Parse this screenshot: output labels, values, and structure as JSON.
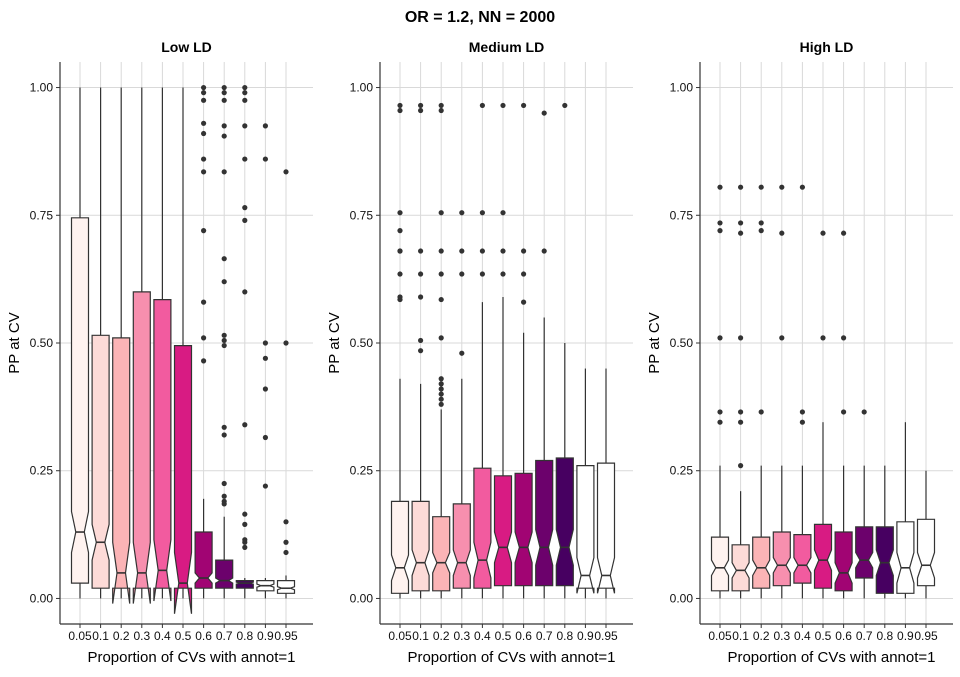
{
  "chart_data": {
    "type": "box",
    "title": "OR = 1.2, NN = 2000",
    "xlabel": "Proportion of CVs with annot=1",
    "ylabel": "PP at CV",
    "ylim": [
      -0.05,
      1.05
    ],
    "yticks": [
      "0.00",
      "0.25",
      "0.50",
      "0.75",
      "1.00"
    ],
    "categories": [
      "0.05",
      "0.1",
      "0.2",
      "0.3",
      "0.4",
      "0.5",
      "0.6",
      "0.7",
      "0.8",
      "0.9",
      "0.95"
    ],
    "fill_colors": [
      "#fff3f0",
      "#fddbd8",
      "#fbb4b6",
      "#f78fae",
      "#f25b9f",
      "#d81b83",
      "#a10473",
      "#6c016c",
      "#470061",
      "#ffffff",
      "#ffffff"
    ],
    "grid": true,
    "notched": true,
    "panels": [
      {
        "title": "Low LD",
        "boxes": [
          {
            "whislo": 0.0,
            "q1": 0.03,
            "med": 0.13,
            "q3": 0.745,
            "whishi": 1.0,
            "notch": [
              0.09,
              0.17
            ],
            "outliers": []
          },
          {
            "whislo": 0.0,
            "q1": 0.02,
            "med": 0.11,
            "q3": 0.515,
            "whishi": 1.0,
            "notch": [
              0.075,
              0.145
            ],
            "outliers": []
          },
          {
            "whislo": 0.0,
            "q1": 0.02,
            "med": 0.05,
            "q3": 0.51,
            "whishi": 1.0,
            "notch": [
              -0.01,
              0.11
            ],
            "outliers": []
          },
          {
            "whislo": 0.0,
            "q1": 0.02,
            "med": 0.05,
            "q3": 0.6,
            "whishi": 1.0,
            "notch": [
              -0.01,
              0.11
            ],
            "outliers": []
          },
          {
            "whislo": 0.0,
            "q1": 0.02,
            "med": 0.055,
            "q3": 0.585,
            "whishi": 1.0,
            "notch": [
              -0.005,
              0.115
            ],
            "outliers": []
          },
          {
            "whislo": 0.0,
            "q1": 0.02,
            "med": 0.03,
            "q3": 0.495,
            "whishi": 1.0,
            "notch": [
              -0.03,
              0.09
            ],
            "outliers": []
          },
          {
            "whislo": 0.0,
            "q1": 0.02,
            "med": 0.04,
            "q3": 0.13,
            "whishi": 0.195,
            "notch": [
              0.03,
              0.05
            ],
            "outliers": [
              1.0,
              0.99,
              0.975,
              0.93,
              0.91,
              0.86,
              0.835,
              0.72,
              0.58,
              0.51,
              0.465
            ]
          },
          {
            "whislo": 0.0,
            "q1": 0.02,
            "med": 0.035,
            "q3": 0.075,
            "whishi": 0.16,
            "notch": [
              0.03,
              0.04
            ],
            "outliers": [
              1.0,
              0.99,
              0.975,
              0.925,
              0.905,
              0.835,
              0.665,
              0.62,
              0.515,
              0.505,
              0.495,
              0.335,
              0.32,
              0.225,
              0.2,
              0.19,
              0.185
            ]
          },
          {
            "whislo": 0.0,
            "q1": 0.02,
            "med": 0.03,
            "q3": 0.035,
            "whishi": 0.04,
            "notch": [
              0.028,
              0.032
            ],
            "outliers": [
              1.0,
              0.99,
              0.975,
              0.925,
              0.86,
              0.765,
              0.74,
              0.6,
              0.34,
              0.165,
              0.145,
              0.115,
              0.11,
              0.1
            ]
          },
          {
            "whislo": 0.0,
            "q1": 0.015,
            "med": 0.025,
            "q3": 0.035,
            "whishi": 0.04,
            "notch": [
              0.022,
              0.028
            ],
            "outliers": [
              0.925,
              0.86,
              0.5,
              0.47,
              0.41,
              0.315,
              0.22
            ]
          },
          {
            "whislo": 0.0,
            "q1": 0.01,
            "med": 0.02,
            "q3": 0.035,
            "whishi": 0.045,
            "notch": [
              0.017,
              0.023
            ],
            "outliers": [
              0.835,
              0.5,
              0.15,
              0.11,
              0.09
            ]
          }
        ]
      },
      {
        "title": "Medium LD",
        "boxes": [
          {
            "whislo": 0.0,
            "q1": 0.01,
            "med": 0.06,
            "q3": 0.19,
            "whishi": 0.43,
            "notch": [
              0.035,
              0.085
            ],
            "outliers": [
              0.965,
              0.955,
              0.755,
              0.72,
              0.68,
              0.68,
              0.635,
              0.59,
              0.585
            ]
          },
          {
            "whislo": 0.0,
            "q1": 0.015,
            "med": 0.07,
            "q3": 0.19,
            "whishi": 0.42,
            "notch": [
              0.045,
              0.095
            ],
            "outliers": [
              0.965,
              0.955,
              0.68,
              0.635,
              0.59,
              0.505,
              0.485
            ]
          },
          {
            "whislo": 0.0,
            "q1": 0.015,
            "med": 0.07,
            "q3": 0.16,
            "whishi": 0.37,
            "notch": [
              0.05,
              0.09
            ],
            "outliers": [
              0.965,
              0.955,
              0.755,
              0.68,
              0.635,
              0.585,
              0.51,
              0.43,
              0.42,
              0.41,
              0.4,
              0.39,
              0.38
            ]
          },
          {
            "whislo": 0.0,
            "q1": 0.02,
            "med": 0.07,
            "q3": 0.185,
            "whishi": 0.43,
            "notch": [
              0.045,
              0.095
            ],
            "outliers": [
              0.755,
              0.68,
              0.635,
              0.48
            ]
          },
          {
            "whislo": 0.0,
            "q1": 0.02,
            "med": 0.075,
            "q3": 0.255,
            "whishi": 0.58,
            "notch": [
              0.04,
              0.11
            ],
            "outliers": [
              0.965,
              0.755,
              0.68,
              0.635
            ]
          },
          {
            "whislo": 0.0,
            "q1": 0.025,
            "med": 0.1,
            "q3": 0.24,
            "whishi": 0.59,
            "notch": [
              0.07,
              0.13
            ],
            "outliers": [
              0.965,
              0.755,
              0.68,
              0.635
            ]
          },
          {
            "whislo": 0.0,
            "q1": 0.025,
            "med": 0.1,
            "q3": 0.245,
            "whishi": 0.52,
            "notch": [
              0.07,
              0.13
            ],
            "outliers": [
              0.965,
              0.68,
              0.635,
              0.58
            ]
          },
          {
            "whislo": 0.0,
            "q1": 0.025,
            "med": 0.1,
            "q3": 0.27,
            "whishi": 0.55,
            "notch": [
              0.065,
              0.135
            ],
            "outliers": [
              0.95,
              0.68
            ]
          },
          {
            "whislo": 0.0,
            "q1": 0.025,
            "med": 0.1,
            "q3": 0.275,
            "whishi": 0.5,
            "notch": [
              0.065,
              0.135
            ],
            "outliers": [
              0.965
            ]
          },
          {
            "whislo": 0.0,
            "q1": 0.02,
            "med": 0.045,
            "q3": 0.26,
            "whishi": 0.45,
            "notch": [
              0.01,
              0.08
            ],
            "outliers": []
          },
          {
            "whislo": 0.0,
            "q1": 0.02,
            "med": 0.045,
            "q3": 0.265,
            "whishi": 0.45,
            "notch": [
              0.01,
              0.08
            ],
            "outliers": []
          }
        ]
      },
      {
        "title": "High LD",
        "boxes": [
          {
            "whislo": 0.0,
            "q1": 0.015,
            "med": 0.06,
            "q3": 0.12,
            "whishi": 0.26,
            "notch": [
              0.045,
              0.075
            ],
            "outliers": [
              0.805,
              0.735,
              0.72,
              0.51,
              0.365,
              0.345
            ]
          },
          {
            "whislo": 0.0,
            "q1": 0.015,
            "med": 0.055,
            "q3": 0.105,
            "whishi": 0.21,
            "notch": [
              0.04,
              0.07
            ],
            "outliers": [
              0.805,
              0.735,
              0.715,
              0.51,
              0.365,
              0.345,
              0.26
            ]
          },
          {
            "whislo": 0.0,
            "q1": 0.02,
            "med": 0.06,
            "q3": 0.12,
            "whishi": 0.26,
            "notch": [
              0.045,
              0.075
            ],
            "outliers": [
              0.805,
              0.735,
              0.72,
              0.365
            ]
          },
          {
            "whislo": 0.0,
            "q1": 0.025,
            "med": 0.065,
            "q3": 0.13,
            "whishi": 0.26,
            "notch": [
              0.05,
              0.08
            ],
            "outliers": [
              0.805,
              0.715,
              0.51
            ]
          },
          {
            "whislo": 0.0,
            "q1": 0.03,
            "med": 0.065,
            "q3": 0.125,
            "whishi": 0.26,
            "notch": [
              0.05,
              0.08
            ],
            "outliers": [
              0.805,
              0.365,
              0.345
            ]
          },
          {
            "whislo": 0.0,
            "q1": 0.02,
            "med": 0.075,
            "q3": 0.145,
            "whishi": 0.345,
            "notch": [
              0.055,
              0.095
            ],
            "outliers": [
              0.715,
              0.51
            ]
          },
          {
            "whislo": 0.0,
            "q1": 0.015,
            "med": 0.05,
            "q3": 0.13,
            "whishi": 0.26,
            "notch": [
              0.03,
              0.07
            ],
            "outliers": [
              0.715,
              0.51,
              0.365
            ]
          },
          {
            "whislo": 0.0,
            "q1": 0.04,
            "med": 0.075,
            "q3": 0.14,
            "whishi": 0.26,
            "notch": [
              0.06,
              0.09
            ],
            "outliers": [
              0.365
            ]
          },
          {
            "whislo": 0.0,
            "q1": 0.01,
            "med": 0.07,
            "q3": 0.14,
            "whishi": 0.26,
            "notch": [
              0.045,
              0.095
            ],
            "outliers": []
          },
          {
            "whislo": 0.0,
            "q1": 0.01,
            "med": 0.06,
            "q3": 0.15,
            "whishi": 0.345,
            "notch": [
              0.03,
              0.09
            ],
            "outliers": []
          },
          {
            "whislo": 0.0,
            "q1": 0.025,
            "med": 0.065,
            "q3": 0.155,
            "whishi": 0.25,
            "notch": [
              0.04,
              0.09
            ],
            "outliers": []
          }
        ]
      }
    ]
  }
}
